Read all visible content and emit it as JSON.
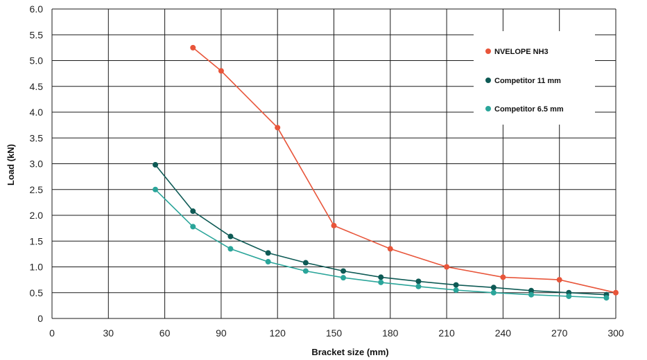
{
  "chart_data": {
    "type": "line",
    "title": "",
    "xlabel": "Bracket size (mm)",
    "ylabel": "Load (kN)",
    "xlim": [
      0,
      300
    ],
    "ylim": [
      0,
      6.0
    ],
    "xticks": [
      "0",
      "30",
      "60",
      "90",
      "120",
      "150",
      "180",
      "210",
      "240",
      "270",
      "300"
    ],
    "yticks": [
      "0",
      "0.5",
      "1.0",
      "1.5",
      "2.0",
      "2.5",
      "3.0",
      "3.5",
      "4.0",
      "4.5",
      "5.0",
      "5.5",
      "6.0"
    ],
    "grid": true,
    "legend_position": "top-right",
    "series": [
      {
        "name": "NVELOPE NH3",
        "color": "#e8553a",
        "points": [
          [
            75,
            5.25
          ],
          [
            90,
            4.8
          ],
          [
            120,
            3.7
          ],
          [
            150,
            1.8
          ],
          [
            180,
            1.35
          ],
          [
            210,
            1.0
          ],
          [
            240,
            0.8
          ],
          [
            270,
            0.75
          ],
          [
            300,
            0.5
          ]
        ]
      },
      {
        "name": "Competitor 11 mm",
        "color": "#0e5a55",
        "points": [
          [
            55,
            2.98
          ],
          [
            75,
            2.08
          ],
          [
            95,
            1.59
          ],
          [
            115,
            1.27
          ],
          [
            135,
            1.08
          ],
          [
            155,
            0.92
          ],
          [
            175,
            0.8
          ],
          [
            195,
            0.72
          ],
          [
            215,
            0.65
          ],
          [
            235,
            0.6
          ],
          [
            255,
            0.54
          ],
          [
            275,
            0.5
          ],
          [
            295,
            0.46
          ]
        ]
      },
      {
        "name": "Competitor 6.5 mm",
        "color": "#2aa59a",
        "points": [
          [
            55,
            2.5
          ],
          [
            75,
            1.78
          ],
          [
            95,
            1.35
          ],
          [
            115,
            1.1
          ],
          [
            135,
            0.92
          ],
          [
            155,
            0.79
          ],
          [
            175,
            0.7
          ],
          [
            195,
            0.62
          ],
          [
            215,
            0.55
          ],
          [
            235,
            0.5
          ],
          [
            255,
            0.46
          ],
          [
            275,
            0.43
          ],
          [
            295,
            0.4
          ]
        ]
      }
    ]
  }
}
